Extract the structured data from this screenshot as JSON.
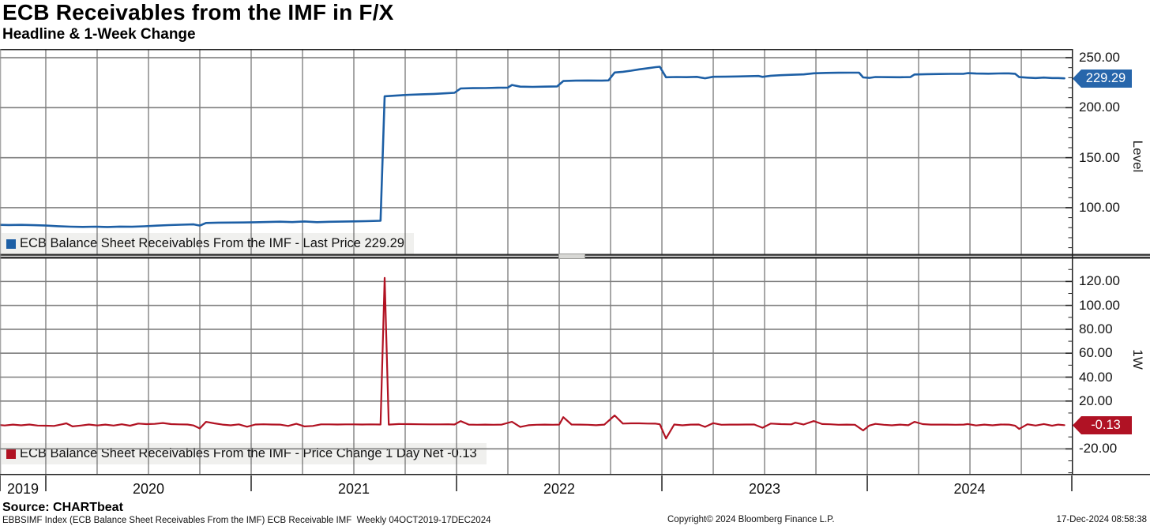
{
  "header": {
    "title": "ECB Receivables from the IMF in F/X",
    "subtitle": "Headline & 1-Week Change"
  },
  "legends": {
    "top": "ECB Balance Sheet Receivables From the IMF - Last Price 229.29",
    "bottom": "ECB Balance Sheet Receivables From the IMF - Price Change 1 Day Net -0.13"
  },
  "badges": {
    "level": "229.29",
    "change": "-0.13"
  },
  "colors": {
    "level_line": "#1d5fa5",
    "change_line": "#b11222",
    "level_badge_bg": "#2766ab",
    "change_badge_bg": "#b01224",
    "grid_vertical": "#4f4f4f",
    "grid_horizontal": "#7e7e7e",
    "axis_line": "#1f1f1f",
    "legend_bg": "#f0f0ee"
  },
  "x_axis": {
    "years": [
      2019,
      2020,
      2021,
      2022,
      2023,
      2024
    ],
    "labels": [
      "2019",
      "2020",
      "2021",
      "2022",
      "2023",
      "2024"
    ]
  },
  "footer": {
    "source": "Source: CHARTbeat",
    "description": "EBBSIMF Index (ECB Balance Sheet Receivables From the IMF) ECB Receivable IMF  Weekly 04OCT2019-17DEC2024",
    "copyright": "Copyright© 2024 Bloomberg Finance L.P.",
    "timestamp": "17-Dec-2024 08:58:38"
  },
  "chart_data": [
    {
      "type": "line",
      "name": "ECB Balance Sheet Receivables From the IMF - Last Price",
      "panel": "top",
      "ylabel": "Level",
      "last_price": 229.29,
      "color": "#1d5fa5",
      "frequency": "Weekly",
      "date_range": "04OCT2019-17DEC2024",
      "xlim": [
        2019.777,
        2024.996
      ],
      "ylim": [
        51.0,
        258.7
      ],
      "grid": true,
      "y_ticks": {
        "values": [
          250,
          200,
          150,
          100
        ],
        "labels": [
          "250.00",
          "200.00",
          "150.00",
          "100.00"
        ]
      },
      "points": [
        [
          2019.76,
          82.9
        ],
        [
          2019.82,
          82.7
        ],
        [
          2019.88,
          82.8
        ],
        [
          2019.94,
          82.5
        ],
        [
          2020.0,
          82.1
        ],
        [
          2020.06,
          81.5
        ],
        [
          2020.12,
          81.0
        ],
        [
          2020.18,
          80.8
        ],
        [
          2020.24,
          81.0
        ],
        [
          2020.3,
          80.7
        ],
        [
          2020.36,
          81.1
        ],
        [
          2020.42,
          80.9
        ],
        [
          2020.48,
          81.4
        ],
        [
          2020.54,
          82.0
        ],
        [
          2020.6,
          82.6
        ],
        [
          2020.66,
          83.0
        ],
        [
          2020.72,
          83.3
        ],
        [
          2020.75,
          82.1
        ],
        [
          2020.78,
          84.7
        ],
        [
          2020.84,
          85.0
        ],
        [
          2020.9,
          85.1
        ],
        [
          2020.96,
          85.2
        ],
        [
          2021.02,
          85.4
        ],
        [
          2021.08,
          85.7
        ],
        [
          2021.14,
          86.0
        ],
        [
          2021.2,
          85.6
        ],
        [
          2021.26,
          86.2
        ],
        [
          2021.32,
          85.5
        ],
        [
          2021.38,
          85.9
        ],
        [
          2021.44,
          86.1
        ],
        [
          2021.5,
          86.3
        ],
        [
          2021.56,
          86.5
        ],
        [
          2021.63,
          86.9
        ],
        [
          2021.65,
          211.4
        ],
        [
          2021.71,
          212.2
        ],
        [
          2021.77,
          212.9
        ],
        [
          2021.83,
          213.4
        ],
        [
          2021.89,
          213.8
        ],
        [
          2021.95,
          214.4
        ],
        [
          2021.99,
          214.9
        ],
        [
          2022.02,
          219.2
        ],
        [
          2022.08,
          219.5
        ],
        [
          2022.14,
          219.6
        ],
        [
          2022.2,
          219.9
        ],
        [
          2022.25,
          220.1
        ],
        [
          2022.27,
          222.7
        ],
        [
          2022.31,
          221.0
        ],
        [
          2022.37,
          220.8
        ],
        [
          2022.43,
          221.0
        ],
        [
          2022.49,
          221.3
        ],
        [
          2022.52,
          226.6
        ],
        [
          2022.58,
          227.0
        ],
        [
          2022.64,
          227.2
        ],
        [
          2022.7,
          227.0
        ],
        [
          2022.74,
          227.3
        ],
        [
          2022.77,
          235.2
        ],
        [
          2022.81,
          235.9
        ],
        [
          2022.85,
          237.0
        ],
        [
          2022.89,
          238.3
        ],
        [
          2022.93,
          239.4
        ],
        [
          2022.97,
          240.5
        ],
        [
          2022.99,
          240.9
        ],
        [
          2023.02,
          230.4
        ],
        [
          2023.07,
          230.7
        ],
        [
          2023.12,
          230.5
        ],
        [
          2023.17,
          230.8
        ],
        [
          2023.21,
          229.4
        ],
        [
          2023.25,
          230.9
        ],
        [
          2023.31,
          231.0
        ],
        [
          2023.37,
          231.2
        ],
        [
          2023.43,
          231.5
        ],
        [
          2023.47,
          231.7
        ],
        [
          2023.49,
          230.8
        ],
        [
          2023.53,
          231.9
        ],
        [
          2023.58,
          232.5
        ],
        [
          2023.63,
          232.9
        ],
        [
          2023.69,
          233.3
        ],
        [
          2023.74,
          234.4
        ],
        [
          2023.8,
          234.8
        ],
        [
          2023.86,
          234.9
        ],
        [
          2023.92,
          235.0
        ],
        [
          2023.96,
          235.0
        ],
        [
          2023.98,
          230.3
        ],
        [
          2024.01,
          229.8
        ],
        [
          2024.04,
          230.7
        ],
        [
          2024.1,
          230.5
        ],
        [
          2024.16,
          230.4
        ],
        [
          2024.21,
          230.6
        ],
        [
          2024.23,
          233.2
        ],
        [
          2024.29,
          233.5
        ],
        [
          2024.35,
          233.7
        ],
        [
          2024.41,
          233.8
        ],
        [
          2024.47,
          233.9
        ],
        [
          2024.49,
          234.5
        ],
        [
          2024.53,
          234.1
        ],
        [
          2024.59,
          234.0
        ],
        [
          2024.64,
          234.2
        ],
        [
          2024.69,
          234.3
        ],
        [
          2024.72,
          233.9
        ],
        [
          2024.74,
          230.6
        ],
        [
          2024.78,
          230.0
        ],
        [
          2024.82,
          229.6
        ],
        [
          2024.86,
          230.1
        ],
        [
          2024.9,
          229.6
        ],
        [
          2024.93,
          229.6
        ],
        [
          2024.96,
          229.29
        ]
      ]
    },
    {
      "type": "line",
      "name": "ECB Balance Sheet Receivables From the IMF - Price Change 1 Day Net",
      "panel": "bottom",
      "ylabel": "1W",
      "last_value": -0.13,
      "color": "#b11222",
      "xlim": [
        2019.777,
        2024.996
      ],
      "ylim": [
        -40.9,
        139.4
      ],
      "grid": true,
      "y_ticks": {
        "values": [
          120,
          100,
          80,
          60,
          40,
          20,
          -20
        ],
        "labels": [
          "120.00",
          "100.00",
          "80.00",
          "60.00",
          "40.00",
          "20.00",
          "-20.00"
        ]
      },
      "points": [
        [
          2019.76,
          0.2
        ],
        [
          2019.8,
          -0.4
        ],
        [
          2019.84,
          0.3
        ],
        [
          2019.88,
          -0.3
        ],
        [
          2019.92,
          0.4
        ],
        [
          2019.96,
          -0.5
        ],
        [
          2020.0,
          -0.6
        ],
        [
          2020.04,
          -0.8
        ],
        [
          2020.08,
          0.6
        ],
        [
          2020.1,
          1.4
        ],
        [
          2020.13,
          -1.2
        ],
        [
          2020.17,
          -0.5
        ],
        [
          2020.21,
          0.4
        ],
        [
          2020.25,
          -0.4
        ],
        [
          2020.29,
          0.3
        ],
        [
          2020.33,
          -0.5
        ],
        [
          2020.37,
          0.6
        ],
        [
          2020.41,
          -0.6
        ],
        [
          2020.45,
          1.2
        ],
        [
          2020.49,
          0.7
        ],
        [
          2020.53,
          0.9
        ],
        [
          2020.57,
          1.6
        ],
        [
          2020.61,
          0.7
        ],
        [
          2020.65,
          0.5
        ],
        [
          2020.69,
          0.4
        ],
        [
          2020.72,
          -0.4
        ],
        [
          2020.75,
          -2.9
        ],
        [
          2020.78,
          2.6
        ],
        [
          2020.82,
          1.4
        ],
        [
          2020.86,
          0.3
        ],
        [
          2020.9,
          -0.3
        ],
        [
          2020.94,
          0.5
        ],
        [
          2020.98,
          -1.5
        ],
        [
          2021.02,
          0.4
        ],
        [
          2021.06,
          0.6
        ],
        [
          2021.1,
          0.4
        ],
        [
          2021.14,
          0.3
        ],
        [
          2021.18,
          -0.8
        ],
        [
          2021.22,
          1.0
        ],
        [
          2021.26,
          -1.2
        ],
        [
          2021.3,
          -0.8
        ],
        [
          2021.34,
          0.5
        ],
        [
          2021.38,
          0.5
        ],
        [
          2021.42,
          0.4
        ],
        [
          2021.46,
          0.5
        ],
        [
          2021.5,
          0.5
        ],
        [
          2021.54,
          0.4
        ],
        [
          2021.58,
          0.5
        ],
        [
          2021.63,
          0.4
        ],
        [
          2021.65,
          123.0
        ],
        [
          2021.67,
          0.3
        ],
        [
          2021.72,
          0.8
        ],
        [
          2021.77,
          0.7
        ],
        [
          2021.82,
          0.6
        ],
        [
          2021.87,
          0.5
        ],
        [
          2021.92,
          0.5
        ],
        [
          2021.96,
          0.6
        ],
        [
          2021.99,
          0.4
        ],
        [
          2022.02,
          3.2
        ],
        [
          2022.06,
          0.3
        ],
        [
          2022.1,
          0.2
        ],
        [
          2022.14,
          0.3
        ],
        [
          2022.18,
          0.2
        ],
        [
          2022.22,
          0.3
        ],
        [
          2022.27,
          2.7
        ],
        [
          2022.31,
          -1.7
        ],
        [
          2022.35,
          -0.2
        ],
        [
          2022.39,
          0.2
        ],
        [
          2022.43,
          0.3
        ],
        [
          2022.47,
          0.2
        ],
        [
          2022.5,
          0.3
        ],
        [
          2022.52,
          6.5
        ],
        [
          2022.56,
          0.4
        ],
        [
          2022.6,
          0.3
        ],
        [
          2022.64,
          0.2
        ],
        [
          2022.68,
          -0.2
        ],
        [
          2022.72,
          0.3
        ],
        [
          2022.77,
          8.0
        ],
        [
          2022.81,
          1.2
        ],
        [
          2022.85,
          1.4
        ],
        [
          2022.89,
          1.4
        ],
        [
          2022.93,
          1.2
        ],
        [
          2022.97,
          1.1
        ],
        [
          2022.99,
          0.6
        ],
        [
          2023.02,
          -11.3
        ],
        [
          2023.06,
          0.4
        ],
        [
          2023.1,
          -0.3
        ],
        [
          2023.14,
          0.3
        ],
        [
          2023.18,
          0.4
        ],
        [
          2023.21,
          -1.6
        ],
        [
          2023.25,
          1.5
        ],
        [
          2023.29,
          0.2
        ],
        [
          2023.33,
          0.3
        ],
        [
          2023.37,
          0.3
        ],
        [
          2023.41,
          0.4
        ],
        [
          2023.45,
          0.4
        ],
        [
          2023.49,
          -2.3
        ],
        [
          2023.53,
          1.2
        ],
        [
          2023.58,
          0.7
        ],
        [
          2023.63,
          0.5
        ],
        [
          2023.65,
          1.9
        ],
        [
          2023.69,
          0.4
        ],
        [
          2023.74,
          3.3
        ],
        [
          2023.78,
          0.8
        ],
        [
          2023.82,
          0.6
        ],
        [
          2023.86,
          0.2
        ],
        [
          2023.9,
          0.3
        ],
        [
          2023.94,
          0.2
        ],
        [
          2023.98,
          -4.6
        ],
        [
          2024.01,
          -0.5
        ],
        [
          2024.04,
          0.9
        ],
        [
          2024.08,
          0.2
        ],
        [
          2024.12,
          -0.3
        ],
        [
          2024.16,
          0.3
        ],
        [
          2024.2,
          -0.2
        ],
        [
          2024.23,
          2.6
        ],
        [
          2024.27,
          0.7
        ],
        [
          2024.31,
          0.3
        ],
        [
          2024.35,
          0.3
        ],
        [
          2024.39,
          0.3
        ],
        [
          2024.43,
          0.2
        ],
        [
          2024.47,
          0.3
        ],
        [
          2024.49,
          0.8
        ],
        [
          2024.53,
          -0.4
        ],
        [
          2024.57,
          0.3
        ],
        [
          2024.61,
          -0.3
        ],
        [
          2024.65,
          0.4
        ],
        [
          2024.69,
          0.3
        ],
        [
          2024.72,
          -0.6
        ],
        [
          2024.74,
          -3.3
        ],
        [
          2024.78,
          0.6
        ],
        [
          2024.82,
          -0.5
        ],
        [
          2024.86,
          0.8
        ],
        [
          2024.9,
          -0.6
        ],
        [
          2024.93,
          0.3
        ],
        [
          2024.96,
          -0.13
        ]
      ]
    }
  ]
}
